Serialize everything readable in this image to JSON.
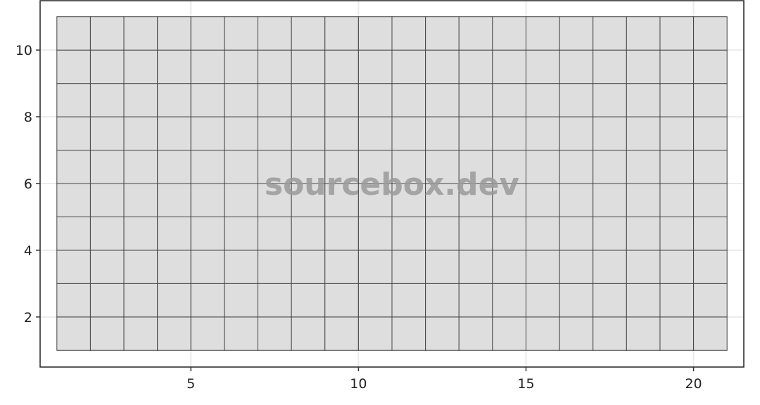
{
  "chart_data": {
    "type": "heatmap",
    "title": "",
    "xlabel": "",
    "ylabel": "",
    "xlim": [
      0.5,
      21.5
    ],
    "ylim": [
      0.5,
      11.5
    ],
    "x_ticks": [
      5,
      10,
      15,
      20
    ],
    "y_ticks": [
      2,
      4,
      6,
      8,
      10
    ],
    "x_tick_labels": [
      "5",
      "10",
      "15",
      "20"
    ],
    "y_tick_labels": [
      "2",
      "4",
      "6",
      "8",
      "10"
    ],
    "cells": {
      "x_min": 1,
      "x_max": 21,
      "y_min": 1,
      "y_max": 11,
      "n_cols": 20,
      "n_rows": 10,
      "fill": "#dedede",
      "edge": "#444444"
    },
    "grid": true,
    "grid_color": "#ebebeb",
    "frame_color": "#222222",
    "legend": "none"
  },
  "watermark": {
    "text": "sourcebox.dev"
  }
}
